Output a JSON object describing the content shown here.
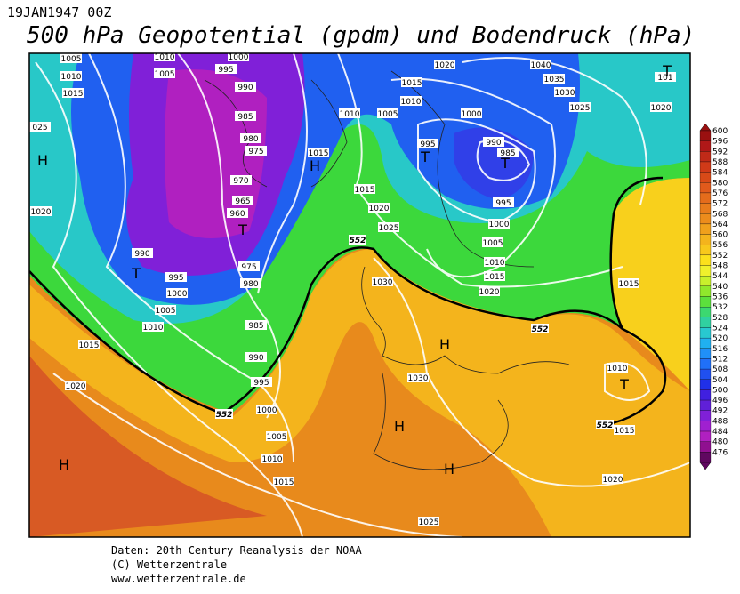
{
  "header": {
    "date": "19JAN1947 00Z",
    "title": "500 hPa Geopotential (gpdm) und Bodendruck (hPa)"
  },
  "isobar_labels": [
    "1005",
    "1010",
    "1015",
    "025",
    "1020",
    "1010",
    "1005",
    "1000",
    "995",
    "990",
    "985",
    "980",
    "975",
    "970",
    "965",
    "960",
    "990",
    "995",
    "1000",
    "1005",
    "1010",
    "1015",
    "1020",
    "975",
    "980",
    "985",
    "990",
    "995",
    "1000",
    "1005",
    "1010",
    "1015",
    "1015",
    "1010",
    "1005",
    "1010",
    "1015",
    "1020",
    "1040",
    "1035",
    "1030",
    "1025",
    "1020",
    "101",
    "1000",
    "995",
    "990",
    "985",
    "995",
    "1000",
    "1005",
    "1010",
    "1015",
    "1020",
    "1015",
    "1020",
    "1025",
    "1030",
    "1030",
    "1015",
    "1010",
    "1015",
    "1020",
    "1025"
  ],
  "contour_labels": [
    "552",
    "552",
    "552",
    "552"
  ],
  "pressure_centers": [
    "H",
    "H",
    "T",
    "T",
    "T",
    "T",
    "T",
    "H",
    "H",
    "H",
    "H",
    "T"
  ],
  "colorbar": {
    "labels": [
      "600",
      "596",
      "592",
      "588",
      "584",
      "580",
      "576",
      "572",
      "568",
      "564",
      "560",
      "556",
      "552",
      "548",
      "544",
      "540",
      "536",
      "532",
      "528",
      "524",
      "520",
      "516",
      "512",
      "508",
      "504",
      "500",
      "496",
      "492",
      "488",
      "484",
      "480",
      "476"
    ],
    "colors": [
      "#9a1010",
      "#b01818",
      "#c02a18",
      "#d03a18",
      "#d84a18",
      "#e05a1c",
      "#e46c1c",
      "#e87c1c",
      "#ec8c1c",
      "#f0a01c",
      "#f4b41c",
      "#f8c81c",
      "#fce01c",
      "#f0f02c",
      "#c8f02c",
      "#90e82c",
      "#5ce03c",
      "#3cd870",
      "#30d0a0",
      "#28c8d0",
      "#20b0f0",
      "#2090f8",
      "#2070f8",
      "#2050f0",
      "#2030e8",
      "#4020e0",
      "#6020d8",
      "#8020d8",
      "#a020d0",
      "#b020c0",
      "#901090",
      "#600860"
    ]
  },
  "footer": {
    "source": "Daten: 20th Century Reanalysis der NOAA",
    "copyright": "(C) Wetterzentrale",
    "url": "www.wetterzentrale.de"
  }
}
